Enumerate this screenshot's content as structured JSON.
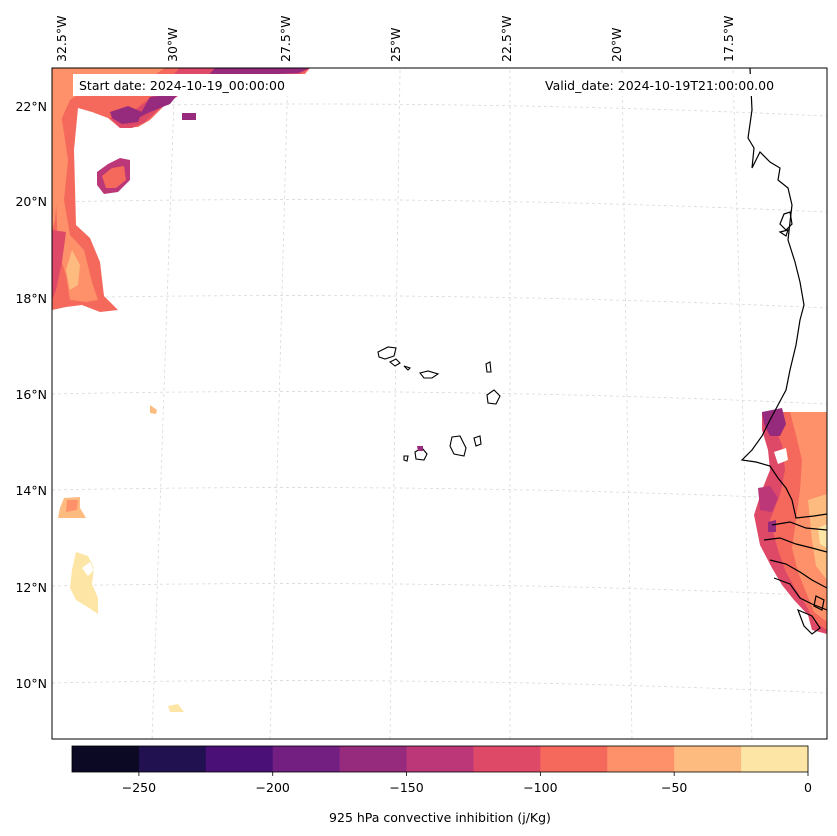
{
  "map": {
    "start_date_label": "Start date: 2024-10-19_00:00:00",
    "valid_date_label": "Valid_date: 2024-10-19T21:00:00.00",
    "lon_labels": [
      "32.5°W",
      "30°W",
      "27.5°W",
      "25°W",
      "22.5°W",
      "20°W",
      "17.5°W"
    ],
    "lat_labels": [
      "22°N",
      "20°N",
      "18°N",
      "16°N",
      "14°N",
      "12°N",
      "10°N"
    ]
  },
  "colorbar": {
    "title": "925 hPa convective inhibition (j/Kg)",
    "tick_labels": [
      "−250",
      "−200",
      "−150",
      "−100",
      "−50",
      "0"
    ],
    "levels": [
      -275,
      -250,
      -225,
      -200,
      -175,
      -150,
      -125,
      -100,
      -75,
      -50,
      -25,
      0
    ],
    "colors": [
      "#0b0924",
      "#221150",
      "#4a1077",
      "#721f81",
      "#962a7d",
      "#bb3778",
      "#de4968",
      "#f4695c",
      "#fe9169",
      "#febb80",
      "#fde5a5"
    ]
  },
  "colors": {
    "coastline": "#000000",
    "grid": "#d9d9d9"
  }
}
